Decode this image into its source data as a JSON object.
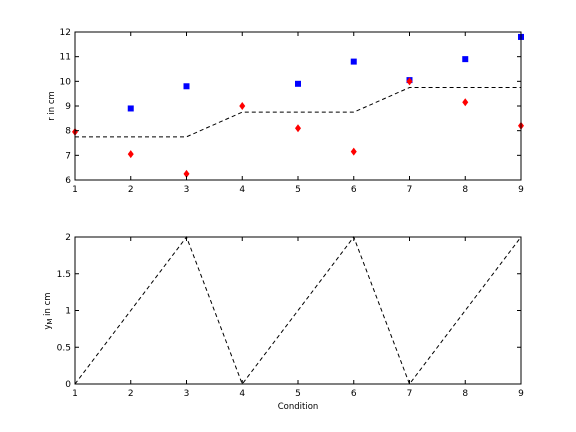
{
  "chart_data": [
    {
      "type": "scatter",
      "title": "",
      "xlabel": "",
      "ylabel": "r in cm",
      "xlim": [
        1,
        9
      ],
      "ylim": [
        6,
        12
      ],
      "xticks": [
        1,
        2,
        3,
        4,
        5,
        6,
        7,
        8,
        9
      ],
      "yticks": [
        6,
        7,
        8,
        9,
        10,
        11,
        12
      ],
      "grid": false,
      "series": [
        {
          "marker": "square",
          "color": "#0000ff",
          "x": [
            2,
            3,
            5,
            6,
            7,
            8,
            9
          ],
          "y": [
            8.9,
            9.8,
            9.9,
            10.8,
            10.05,
            10.9,
            11.8
          ]
        },
        {
          "marker": "diamond",
          "color": "#ff0000",
          "x": [
            1,
            2,
            3,
            4,
            5,
            6,
            7,
            8,
            9
          ],
          "y": [
            7.95,
            7.05,
            6.25,
            9.0,
            8.1,
            7.15,
            10.0,
            9.15,
            8.2
          ]
        },
        {
          "type": "line",
          "style": "dashed",
          "color": "#000000",
          "x": [
            1,
            3,
            4,
            6,
            7,
            9
          ],
          "y": [
            7.75,
            7.75,
            8.75,
            8.75,
            9.75,
            9.75
          ]
        }
      ]
    },
    {
      "type": "line",
      "title": "",
      "xlabel": "Condition",
      "ylabel": "y",
      "ylabel_sub": "M",
      "ylabel_suffix": " in cm",
      "xlim": [
        1,
        9
      ],
      "ylim": [
        0,
        2
      ],
      "xticks": [
        1,
        2,
        3,
        4,
        5,
        6,
        7,
        8,
        9
      ],
      "yticks": [
        "0",
        "0.5",
        "1",
        "1.5",
        "2"
      ],
      "grid": false,
      "series": [
        {
          "style": "dashed",
          "color": "#000000",
          "x": [
            1,
            3,
            4,
            6,
            7,
            9
          ],
          "y": [
            0,
            2,
            0,
            2,
            0,
            2
          ]
        }
      ]
    }
  ]
}
